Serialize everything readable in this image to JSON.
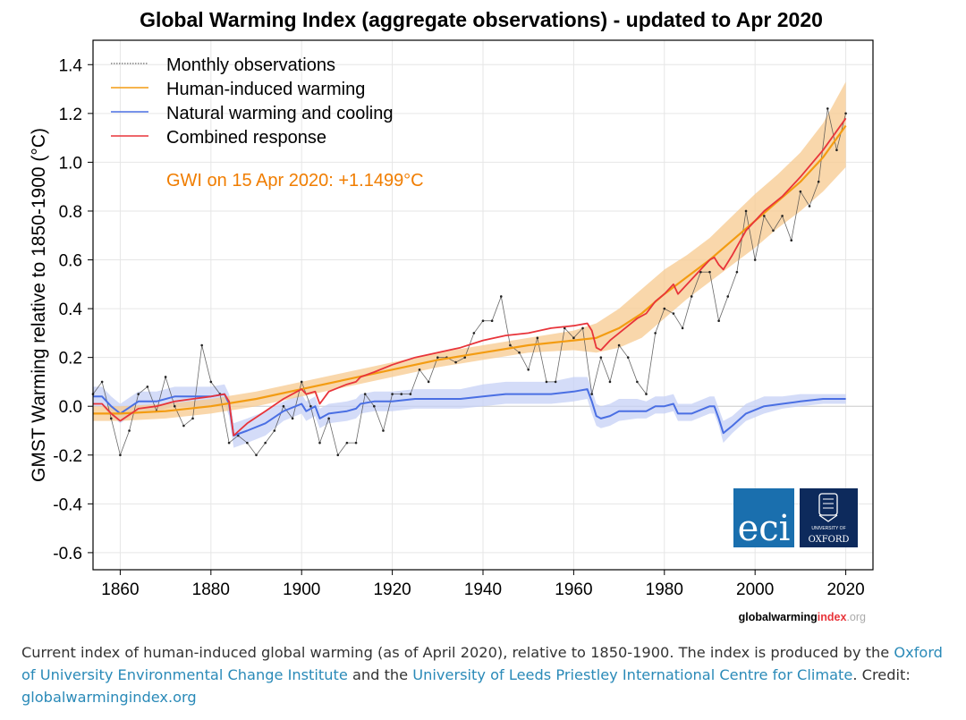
{
  "colors": {
    "observations": "#444444",
    "human": "#f39c12",
    "human_band": "#f7c98f",
    "natural": "#4a6fe3",
    "natural_band": "#c5d0f5",
    "combined": "#e8343a",
    "gwi_text": "#f07d00",
    "eci_bg": "#1a6fae",
    "oxford_bg": "#0d2a5c",
    "link": "#2a8ab8"
  },
  "chart_data": {
    "type": "line",
    "title": "Global Warming Index (aggregate observations) - updated to Apr 2020",
    "ylabel": "GMST Warming relative to 1850-1900 (°C)",
    "xlabel": "",
    "xlim": [
      1854,
      2026
    ],
    "ylim": [
      -0.67,
      1.5
    ],
    "xticks": [
      1860,
      1880,
      1900,
      1920,
      1940,
      1960,
      1980,
      2000,
      2020
    ],
    "yticks": [
      -0.6,
      -0.4,
      -0.2,
      0.0,
      0.2,
      0.4,
      0.6,
      0.8,
      1.0,
      1.2,
      1.4
    ],
    "grid": true,
    "legend_position": "top-left",
    "annotation": "GWI on 15 Apr 2020: +1.1499°C",
    "series": [
      {
        "name": "Monthly observations",
        "style": "thin dotted line",
        "x": [
          1854,
          1856,
          1858,
          1860,
          1862,
          1864,
          1866,
          1868,
          1870,
          1872,
          1874,
          1876,
          1878,
          1880,
          1882,
          1884,
          1886,
          1888,
          1890,
          1892,
          1894,
          1896,
          1898,
          1900,
          1902,
          1904,
          1906,
          1908,
          1910,
          1912,
          1914,
          1916,
          1918,
          1920,
          1922,
          1924,
          1926,
          1928,
          1930,
          1932,
          1934,
          1936,
          1938,
          1940,
          1942,
          1944,
          1946,
          1948,
          1950,
          1952,
          1954,
          1956,
          1958,
          1960,
          1962,
          1964,
          1966,
          1968,
          1970,
          1972,
          1974,
          1976,
          1978,
          1980,
          1982,
          1984,
          1986,
          1988,
          1990,
          1992,
          1994,
          1996,
          1998,
          2000,
          2002,
          2004,
          2006,
          2008,
          2010,
          2012,
          2014,
          2016,
          2018,
          2020
        ],
        "y": [
          0.05,
          0.1,
          -0.05,
          -0.2,
          -0.1,
          0.05,
          0.08,
          -0.02,
          0.12,
          0.0,
          -0.08,
          -0.05,
          0.25,
          0.1,
          0.05,
          -0.15,
          -0.12,
          -0.15,
          -0.2,
          -0.15,
          -0.1,
          0.0,
          -0.05,
          0.1,
          0.0,
          -0.15,
          -0.05,
          -0.2,
          -0.15,
          -0.15,
          0.05,
          0.0,
          -0.1,
          0.05,
          0.05,
          0.05,
          0.15,
          0.1,
          0.2,
          0.2,
          0.18,
          0.2,
          0.3,
          0.35,
          0.35,
          0.45,
          0.25,
          0.22,
          0.15,
          0.28,
          0.1,
          0.1,
          0.32,
          0.28,
          0.32,
          0.05,
          0.2,
          0.1,
          0.25,
          0.2,
          0.1,
          0.05,
          0.3,
          0.4,
          0.38,
          0.32,
          0.45,
          0.55,
          0.55,
          0.35,
          0.45,
          0.55,
          0.8,
          0.6,
          0.78,
          0.72,
          0.78,
          0.68,
          0.88,
          0.82,
          0.92,
          1.22,
          1.05,
          1.2
        ]
      },
      {
        "name": "Human-induced warming",
        "x": [
          1854,
          1860,
          1870,
          1880,
          1890,
          1900,
          1910,
          1920,
          1930,
          1940,
          1950,
          1960,
          1965,
          1970,
          1975,
          1980,
          1985,
          1990,
          1995,
          2000,
          2005,
          2010,
          2015,
          2020
        ],
        "y": [
          -0.03,
          -0.03,
          -0.02,
          0.0,
          0.03,
          0.07,
          0.11,
          0.15,
          0.19,
          0.22,
          0.25,
          0.27,
          0.28,
          0.32,
          0.38,
          0.46,
          0.53,
          0.6,
          0.68,
          0.76,
          0.84,
          0.92,
          1.02,
          1.15
        ],
        "band_low": [
          -0.06,
          -0.06,
          -0.05,
          -0.03,
          0.0,
          0.04,
          0.08,
          0.12,
          0.16,
          0.19,
          0.22,
          0.23,
          0.22,
          0.24,
          0.28,
          0.36,
          0.44,
          0.51,
          0.58,
          0.65,
          0.73,
          0.8,
          0.88,
          0.98
        ],
        "band_high": [
          0.0,
          0.0,
          0.01,
          0.03,
          0.06,
          0.1,
          0.14,
          0.18,
          0.22,
          0.25,
          0.28,
          0.31,
          0.34,
          0.4,
          0.48,
          0.56,
          0.62,
          0.69,
          0.78,
          0.87,
          0.95,
          1.04,
          1.16,
          1.33
        ]
      },
      {
        "name": "Natural warming and cooling",
        "x": [
          1854,
          1856,
          1858,
          1860,
          1864,
          1868,
          1872,
          1876,
          1880,
          1883,
          1884,
          1885,
          1888,
          1892,
          1896,
          1900,
          1901,
          1903,
          1904,
          1906,
          1910,
          1912,
          1913,
          1916,
          1920,
          1925,
          1930,
          1935,
          1940,
          1945,
          1950,
          1955,
          1960,
          1963,
          1964,
          1965,
          1966,
          1968,
          1970,
          1974,
          1976,
          1978,
          1980,
          1982,
          1983,
          1986,
          1990,
          1991,
          1992,
          1993,
          1995,
          1998,
          2002,
          2006,
          2010,
          2015,
          2020
        ],
        "y": [
          0.04,
          0.04,
          0.0,
          -0.03,
          0.02,
          0.02,
          0.04,
          0.04,
          0.04,
          0.05,
          0.01,
          -0.12,
          -0.1,
          -0.07,
          -0.02,
          0.01,
          -0.02,
          0.0,
          -0.05,
          -0.03,
          -0.02,
          -0.01,
          0.01,
          0.02,
          0.02,
          0.03,
          0.03,
          0.03,
          0.04,
          0.05,
          0.05,
          0.05,
          0.06,
          0.07,
          0.02,
          -0.04,
          -0.05,
          -0.04,
          -0.02,
          -0.02,
          -0.02,
          0.0,
          0.0,
          0.01,
          -0.03,
          -0.03,
          0.0,
          0.0,
          -0.05,
          -0.11,
          -0.08,
          -0.03,
          0.0,
          0.01,
          0.02,
          0.03,
          0.03
        ],
        "band_low": [
          0.0,
          0.0,
          -0.04,
          -0.07,
          -0.02,
          -0.02,
          0.0,
          0.0,
          0.0,
          0.01,
          -0.04,
          -0.17,
          -0.15,
          -0.12,
          -0.06,
          -0.03,
          -0.06,
          -0.04,
          -0.09,
          -0.07,
          -0.06,
          -0.05,
          -0.03,
          -0.02,
          -0.02,
          -0.01,
          -0.01,
          -0.01,
          0.0,
          0.01,
          0.01,
          0.01,
          0.02,
          0.03,
          -0.03,
          -0.08,
          -0.09,
          -0.08,
          -0.06,
          -0.05,
          -0.05,
          -0.03,
          -0.03,
          -0.02,
          -0.06,
          -0.06,
          -0.03,
          -0.03,
          -0.08,
          -0.15,
          -0.11,
          -0.06,
          -0.03,
          -0.01,
          0.0,
          0.01,
          0.01
        ],
        "band_high": [
          0.08,
          0.08,
          0.04,
          0.01,
          0.06,
          0.06,
          0.08,
          0.08,
          0.08,
          0.09,
          0.05,
          -0.07,
          -0.05,
          -0.02,
          0.02,
          0.05,
          0.02,
          0.04,
          -0.01,
          0.01,
          0.02,
          0.03,
          0.05,
          0.06,
          0.06,
          0.07,
          0.07,
          0.07,
          0.09,
          0.1,
          0.1,
          0.1,
          0.12,
          0.12,
          0.07,
          0.01,
          0.0,
          0.01,
          0.03,
          0.03,
          0.02,
          0.04,
          0.04,
          0.05,
          0.01,
          0.01,
          0.04,
          0.04,
          -0.01,
          -0.06,
          -0.04,
          0.01,
          0.04,
          0.04,
          0.05,
          0.05,
          0.05
        ]
      },
      {
        "name": "Combined response",
        "x": [
          1854,
          1856,
          1858,
          1860,
          1864,
          1868,
          1872,
          1876,
          1880,
          1883,
          1884,
          1885,
          1888,
          1892,
          1896,
          1900,
          1901,
          1903,
          1904,
          1906,
          1910,
          1912,
          1913,
          1916,
          1920,
          1925,
          1930,
          1935,
          1940,
          1945,
          1950,
          1955,
          1960,
          1963,
          1964,
          1965,
          1966,
          1968,
          1970,
          1974,
          1976,
          1978,
          1980,
          1982,
          1983,
          1986,
          1990,
          1991,
          1992,
          1993,
          1995,
          1998,
          2002,
          2006,
          2010,
          2015,
          2020
        ],
        "y": [
          0.01,
          0.01,
          -0.03,
          -0.06,
          -0.01,
          0.0,
          0.02,
          0.03,
          0.04,
          0.05,
          0.02,
          -0.12,
          -0.07,
          -0.02,
          0.03,
          0.07,
          0.05,
          0.06,
          0.01,
          0.06,
          0.09,
          0.1,
          0.12,
          0.14,
          0.17,
          0.2,
          0.22,
          0.24,
          0.27,
          0.29,
          0.3,
          0.32,
          0.33,
          0.34,
          0.31,
          0.24,
          0.23,
          0.27,
          0.3,
          0.36,
          0.38,
          0.43,
          0.46,
          0.5,
          0.46,
          0.52,
          0.6,
          0.61,
          0.58,
          0.56,
          0.62,
          0.72,
          0.8,
          0.86,
          0.94,
          1.05,
          1.18
        ]
      }
    ]
  },
  "logos": {
    "eci": "eci",
    "oxford_small": "UNIVERSITY OF",
    "oxford_big": "OXFORD"
  },
  "watermark": {
    "part1": "globalwarming",
    "part2": "index",
    "part3": ".org"
  },
  "caption": {
    "text1": "Current index of human-induced global warming (as of April 2020), relative to 1850-1900. The index is produced by the ",
    "link1": "Oxford of University Environmental Change Institute",
    "text2": " and the ",
    "link2": "University of Leeds Priestley International Centre for Climate",
    "text3": ". Credit: ",
    "link3": "globalwarmingindex.org"
  }
}
